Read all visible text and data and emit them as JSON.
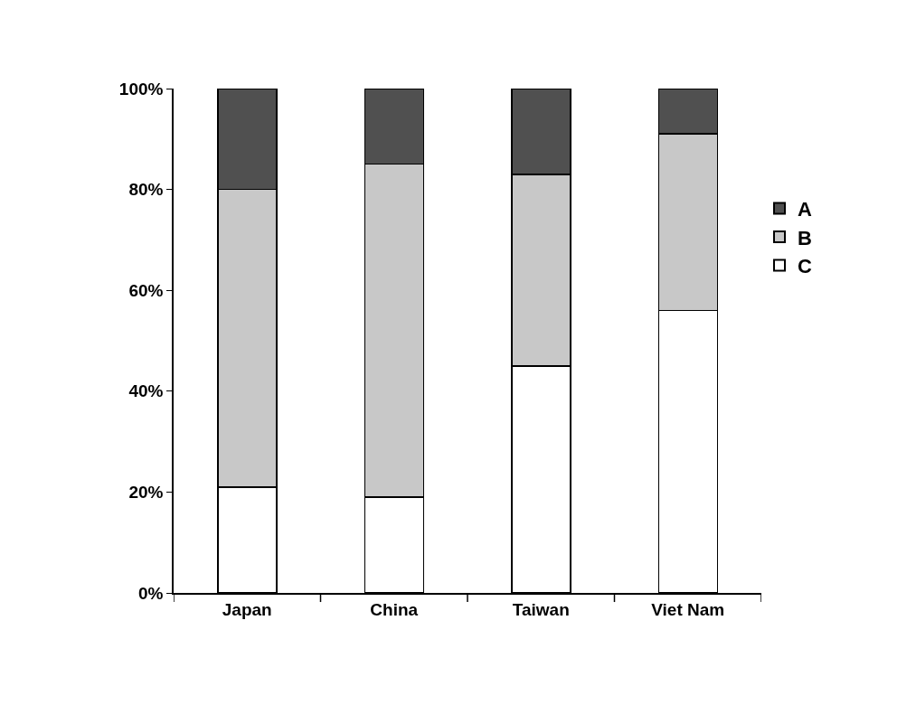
{
  "chart_data": {
    "type": "bar",
    "stacked": true,
    "categories": [
      "Japan",
      "China",
      "Taiwan",
      "Viet Nam"
    ],
    "series": [
      {
        "name": "C",
        "color": "#ffffff",
        "values": [
          21,
          19,
          45,
          56
        ]
      },
      {
        "name": "B",
        "color": "#c8c8c8",
        "values": [
          59,
          66,
          38,
          35
        ]
      },
      {
        "name": "A",
        "color": "#505050",
        "values": [
          20,
          15,
          17,
          9
        ]
      }
    ],
    "ylim": [
      0,
      100
    ],
    "yticks": [
      {
        "value": 0,
        "label": "0%"
      },
      {
        "value": 20,
        "label": "20%"
      },
      {
        "value": 40,
        "label": "40%"
      },
      {
        "value": 60,
        "label": "60%"
      },
      {
        "value": 80,
        "label": "80%"
      },
      {
        "value": 100,
        "label": "100%"
      }
    ],
    "grid": false,
    "legend": "right"
  }
}
